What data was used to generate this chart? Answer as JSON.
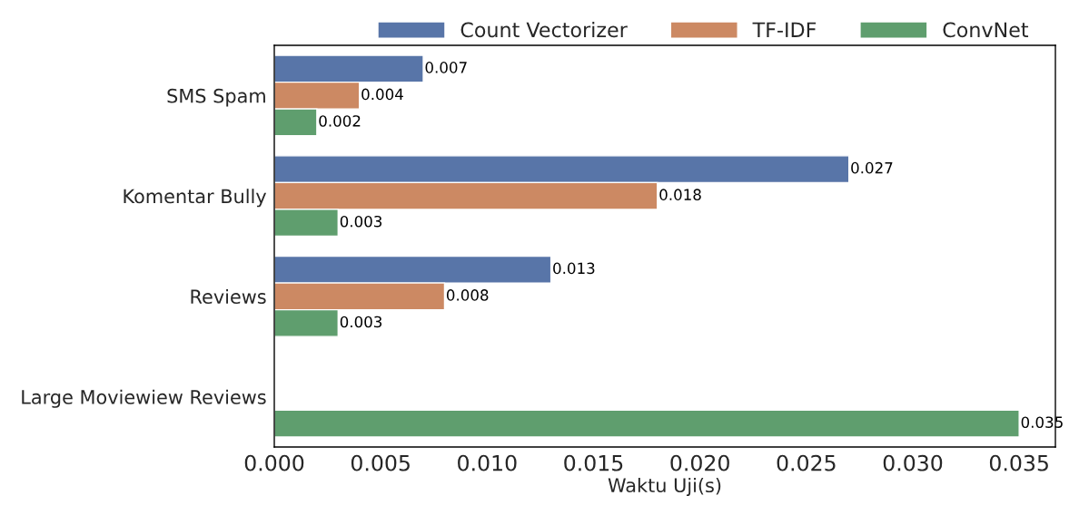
{
  "chart_data": {
    "type": "bar",
    "orientation": "horizontal",
    "xlabel": "Waktu Uji(s)",
    "categories": [
      "SMS Spam",
      "Komentar Bully",
      "Reviews",
      "Large Moviewiew Reviews"
    ],
    "series": [
      {
        "name": "Count Vectorizer",
        "color": "#5875a8",
        "values": [
          0.007,
          0.027,
          0.013,
          null
        ]
      },
      {
        "name": "TF-IDF",
        "color": "#cc8963",
        "values": [
          0.004,
          0.018,
          0.008,
          null
        ]
      },
      {
        "name": "ConvNet",
        "color": "#5f9e6e",
        "values": [
          0.002,
          0.003,
          0.003,
          0.035
        ]
      }
    ],
    "xlim": [
      0,
      0.0367
    ],
    "xticks": [
      {
        "value": 0,
        "label": "0.000"
      },
      {
        "value": 0.005,
        "label": "0.005"
      },
      {
        "value": 0.01,
        "label": "0.010"
      },
      {
        "value": 0.015,
        "label": "0.015"
      },
      {
        "value": 0.02,
        "label": "0.020"
      },
      {
        "value": 0.025,
        "label": "0.025"
      },
      {
        "value": 0.03,
        "label": "0.030"
      },
      {
        "value": 0.035,
        "label": "0.035"
      }
    ],
    "data_labels": true,
    "legend": "top",
    "grid": false
  }
}
